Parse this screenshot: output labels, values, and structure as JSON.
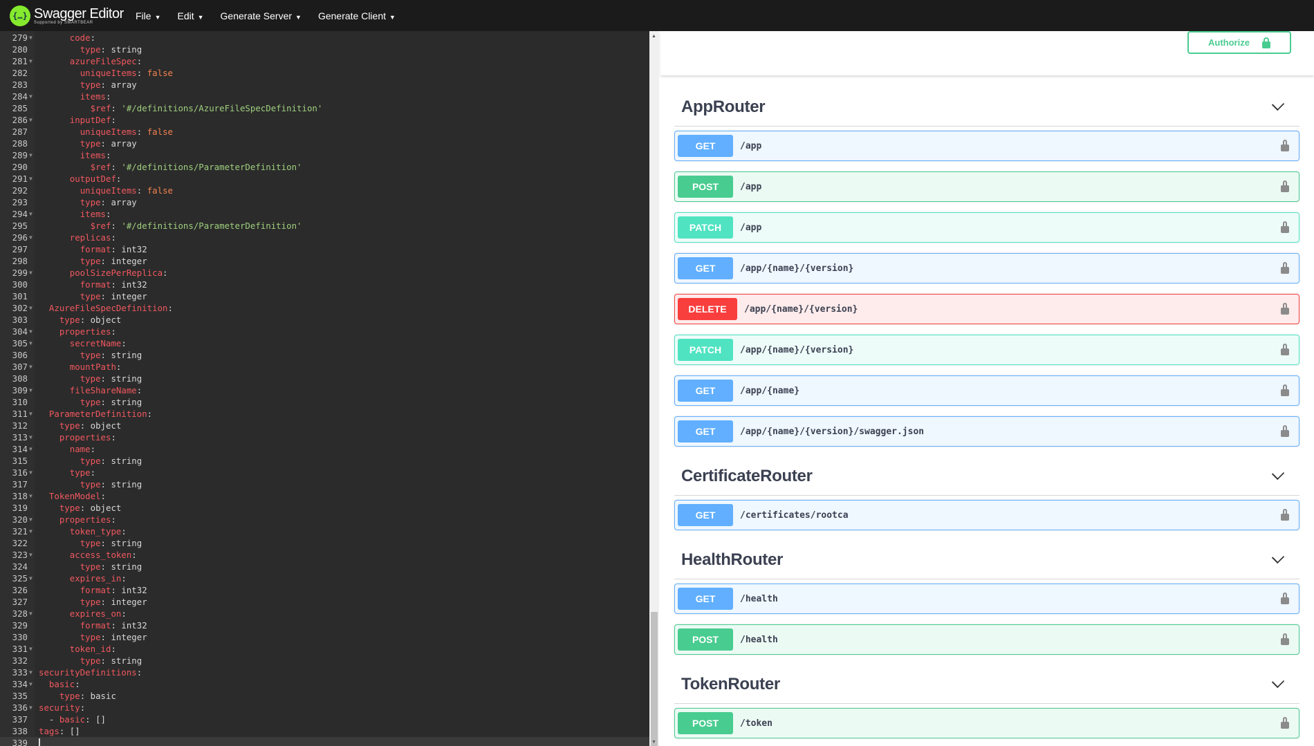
{
  "app": {
    "title": "Swagger Editor",
    "subtitle": "Supported by SMARTBEAR",
    "logo_glyph": "{…}"
  },
  "menu": [
    {
      "label": "File"
    },
    {
      "label": "Edit"
    },
    {
      "label": "Generate Server"
    },
    {
      "label": "Generate Client"
    }
  ],
  "editor": {
    "lines": [
      {
        "n": 279,
        "text": "      code:"
      },
      {
        "n": 280,
        "text": "        type: string"
      },
      {
        "n": 281,
        "text": "      azureFileSpec:"
      },
      {
        "n": 282,
        "text": "        uniqueItems: false"
      },
      {
        "n": 283,
        "text": "        type: array"
      },
      {
        "n": 284,
        "text": "        items:"
      },
      {
        "n": 285,
        "text": "          $ref: '#/definitions/AzureFileSpecDefinition'"
      },
      {
        "n": 286,
        "text": "      inputDef:"
      },
      {
        "n": 287,
        "text": "        uniqueItems: false"
      },
      {
        "n": 288,
        "text": "        type: array"
      },
      {
        "n": 289,
        "text": "        items:"
      },
      {
        "n": 290,
        "text": "          $ref: '#/definitions/ParameterDefinition'"
      },
      {
        "n": 291,
        "text": "      outputDef:"
      },
      {
        "n": 292,
        "text": "        uniqueItems: false"
      },
      {
        "n": 293,
        "text": "        type: array"
      },
      {
        "n": 294,
        "text": "        items:"
      },
      {
        "n": 295,
        "text": "          $ref: '#/definitions/ParameterDefinition'"
      },
      {
        "n": 296,
        "text": "      replicas:"
      },
      {
        "n": 297,
        "text": "        format: int32"
      },
      {
        "n": 298,
        "text": "        type: integer"
      },
      {
        "n": 299,
        "text": "      poolSizePerReplica:"
      },
      {
        "n": 300,
        "text": "        format: int32"
      },
      {
        "n": 301,
        "text": "        type: integer"
      },
      {
        "n": 302,
        "text": "  AzureFileSpecDefinition:"
      },
      {
        "n": 303,
        "text": "    type: object"
      },
      {
        "n": 304,
        "text": "    properties:"
      },
      {
        "n": 305,
        "text": "      secretName:"
      },
      {
        "n": 306,
        "text": "        type: string"
      },
      {
        "n": 307,
        "text": "      mountPath:"
      },
      {
        "n": 308,
        "text": "        type: string"
      },
      {
        "n": 309,
        "text": "      fileShareName:"
      },
      {
        "n": 310,
        "text": "        type: string"
      },
      {
        "n": 311,
        "text": "  ParameterDefinition:"
      },
      {
        "n": 312,
        "text": "    type: object"
      },
      {
        "n": 313,
        "text": "    properties:"
      },
      {
        "n": 314,
        "text": "      name:"
      },
      {
        "n": 315,
        "text": "        type: string"
      },
      {
        "n": 316,
        "text": "      type:"
      },
      {
        "n": 317,
        "text": "        type: string"
      },
      {
        "n": 318,
        "text": "  TokenModel:"
      },
      {
        "n": 319,
        "text": "    type: object"
      },
      {
        "n": 320,
        "text": "    properties:"
      },
      {
        "n": 321,
        "text": "      token_type:"
      },
      {
        "n": 322,
        "text": "        type: string"
      },
      {
        "n": 323,
        "text": "      access_token:"
      },
      {
        "n": 324,
        "text": "        type: string"
      },
      {
        "n": 325,
        "text": "      expires_in:"
      },
      {
        "n": 326,
        "text": "        format: int32"
      },
      {
        "n": 327,
        "text": "        type: integer"
      },
      {
        "n": 328,
        "text": "      expires_on:"
      },
      {
        "n": 329,
        "text": "        format: int32"
      },
      {
        "n": 330,
        "text": "        type: integer"
      },
      {
        "n": 331,
        "text": "      token_id:"
      },
      {
        "n": 332,
        "text": "        type: string"
      },
      {
        "n": 333,
        "text": "securityDefinitions:"
      },
      {
        "n": 334,
        "text": "  basic:"
      },
      {
        "n": 335,
        "text": "    type: basic"
      },
      {
        "n": 336,
        "text": "security:"
      },
      {
        "n": 337,
        "text": "  - basic: []"
      },
      {
        "n": 338,
        "text": "tags: []"
      },
      {
        "n": 339,
        "text": ""
      }
    ]
  },
  "authorize": {
    "label": "Authorize",
    "icon": "unlocked-lock-icon"
  },
  "colors": {
    "GET": "#61affe",
    "POST": "#49cc90",
    "PATCH": "#50e3c2",
    "DELETE": "#f93e3e"
  },
  "sections": [
    {
      "title": "AppRouter",
      "ops": [
        {
          "method": "GET",
          "path": "/app"
        },
        {
          "method": "POST",
          "path": "/app"
        },
        {
          "method": "PATCH",
          "path": "/app"
        },
        {
          "method": "GET",
          "path": "/app/{name}/{version}"
        },
        {
          "method": "DELETE",
          "path": "/app/{name}/{version}"
        },
        {
          "method": "PATCH",
          "path": "/app/{name}/{version}"
        },
        {
          "method": "GET",
          "path": "/app/{name}"
        },
        {
          "method": "GET",
          "path": "/app/{name}/{version}/swagger.json"
        }
      ]
    },
    {
      "title": "CertificateRouter",
      "ops": [
        {
          "method": "GET",
          "path": "/certificates/rootca"
        }
      ]
    },
    {
      "title": "HealthRouter",
      "ops": [
        {
          "method": "GET",
          "path": "/health"
        },
        {
          "method": "POST",
          "path": "/health"
        }
      ]
    },
    {
      "title": "TokenRouter",
      "ops": [
        {
          "method": "POST",
          "path": "/token"
        }
      ]
    }
  ]
}
